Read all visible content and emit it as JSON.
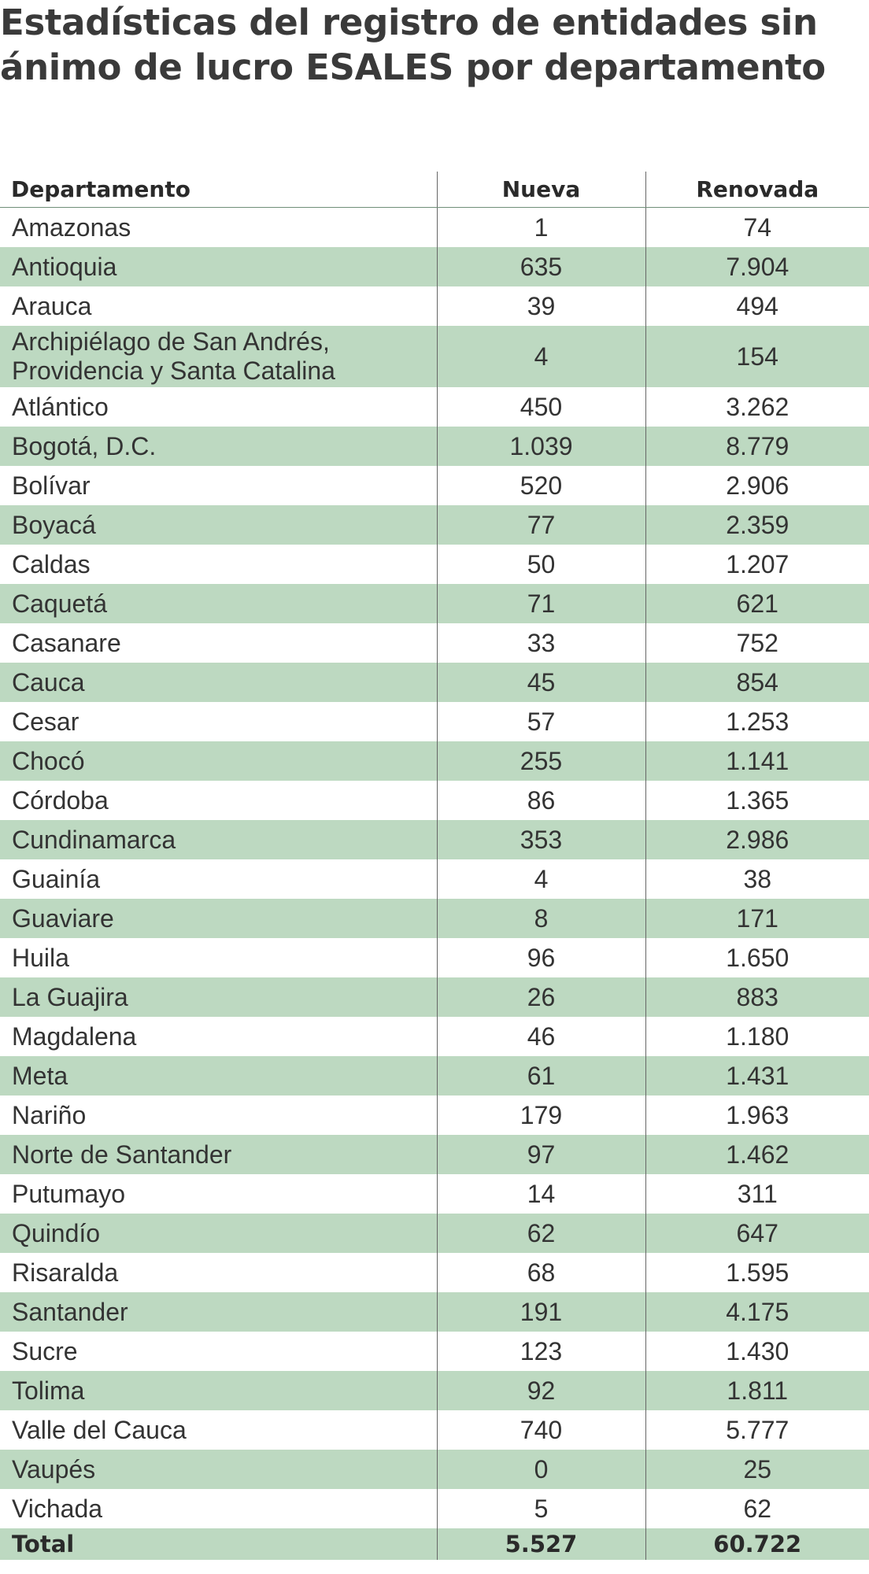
{
  "title": "Estadísticas del registro de entidades sin ánimo de lucro ESALES  por departamento",
  "table": {
    "headers": [
      "Departamento",
      "Nueva",
      "Renovada"
    ],
    "rows": [
      {
        "departamento": "Amazonas",
        "nueva": "1",
        "renovada": "74"
      },
      {
        "departamento": "Antioquia",
        "nueva": "635",
        "renovada": "7.904"
      },
      {
        "departamento": "Arauca",
        "nueva": "39",
        "renovada": "494"
      },
      {
        "departamento": "Archipiélago de San Andrés, Providencia y Santa Catalina",
        "nueva": "4",
        "renovada": "154"
      },
      {
        "departamento": "Atlántico",
        "nueva": "450",
        "renovada": "3.262"
      },
      {
        "departamento": "Bogotá, D.C.",
        "nueva": "1.039",
        "renovada": "8.779"
      },
      {
        "departamento": "Bolívar",
        "nueva": "520",
        "renovada": "2.906"
      },
      {
        "departamento": "Boyacá",
        "nueva": "77",
        "renovada": "2.359"
      },
      {
        "departamento": "Caldas",
        "nueva": "50",
        "renovada": "1.207"
      },
      {
        "departamento": "Caquetá",
        "nueva": "71",
        "renovada": "621"
      },
      {
        "departamento": "Casanare",
        "nueva": "33",
        "renovada": "752"
      },
      {
        "departamento": "Cauca",
        "nueva": "45",
        "renovada": "854"
      },
      {
        "departamento": "Cesar",
        "nueva": "57",
        "renovada": "1.253"
      },
      {
        "departamento": "Chocó",
        "nueva": "255",
        "renovada": "1.141"
      },
      {
        "departamento": "Córdoba",
        "nueva": "86",
        "renovada": "1.365"
      },
      {
        "departamento": "Cundinamarca",
        "nueva": "353",
        "renovada": "2.986"
      },
      {
        "departamento": "Guainía",
        "nueva": "4",
        "renovada": "38"
      },
      {
        "departamento": "Guaviare",
        "nueva": "8",
        "renovada": "171"
      },
      {
        "departamento": "Huila",
        "nueva": "96",
        "renovada": "1.650"
      },
      {
        "departamento": "La Guajira",
        "nueva": "26",
        "renovada": "883"
      },
      {
        "departamento": "Magdalena",
        "nueva": "46",
        "renovada": "1.180"
      },
      {
        "departamento": "Meta",
        "nueva": "61",
        "renovada": "1.431"
      },
      {
        "departamento": "Nariño",
        "nueva": "179",
        "renovada": "1.963"
      },
      {
        "departamento": "Norte de Santander",
        "nueva": "97",
        "renovada": "1.462"
      },
      {
        "departamento": "Putumayo",
        "nueva": "14",
        "renovada": "311"
      },
      {
        "departamento": "Quindío",
        "nueva": "62",
        "renovada": "647"
      },
      {
        "departamento": "Risaralda",
        "nueva": "68",
        "renovada": "1.595"
      },
      {
        "departamento": "Santander",
        "nueva": "191",
        "renovada": "4.175"
      },
      {
        "departamento": "Sucre",
        "nueva": "123",
        "renovada": "1.430"
      },
      {
        "departamento": "Tolima",
        "nueva": "92",
        "renovada": "1.811"
      },
      {
        "departamento": "Valle del Cauca",
        "nueva": "740",
        "renovada": "5.777"
      },
      {
        "departamento": "Vaupés",
        "nueva": "0",
        "renovada": "25"
      },
      {
        "departamento": "Vichada",
        "nueva": "5",
        "renovada": "62"
      }
    ],
    "total": {
      "departamento": "Total",
      "nueva": "5.527",
      "renovada": "60.722"
    }
  },
  "colors": {
    "row_shade": "#bdd9c1",
    "header_rule": "#6f8f78",
    "column_divider": "#666666",
    "text": "#2a2a2a"
  }
}
